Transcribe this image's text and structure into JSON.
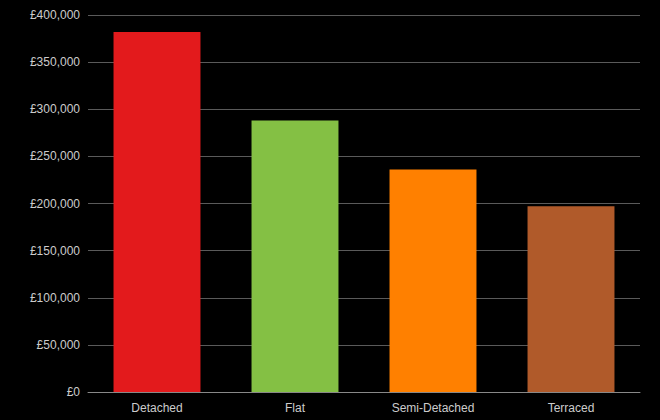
{
  "chart_data": {
    "type": "bar",
    "categories": [
      "Detached",
      "Flat",
      "Semi-Detached",
      "Terraced"
    ],
    "values": [
      382000,
      288000,
      236000,
      197000
    ],
    "colors": [
      "#e31a1c",
      "#84c044",
      "#ff8000",
      "#b05a2a"
    ],
    "ylim": [
      0,
      400000
    ],
    "yticks": [
      {
        "value": 0,
        "label": "£0"
      },
      {
        "value": 50000,
        "label": "£50,000"
      },
      {
        "value": 100000,
        "label": "£100,000"
      },
      {
        "value": 150000,
        "label": "£150,000"
      },
      {
        "value": 200000,
        "label": "£200,000"
      },
      {
        "value": 250000,
        "label": "£250,000"
      },
      {
        "value": 300000,
        "label": "£300,000"
      },
      {
        "value": 350000,
        "label": "£350,000"
      },
      {
        "value": 400000,
        "label": "£400,000"
      }
    ],
    "grid": true
  }
}
